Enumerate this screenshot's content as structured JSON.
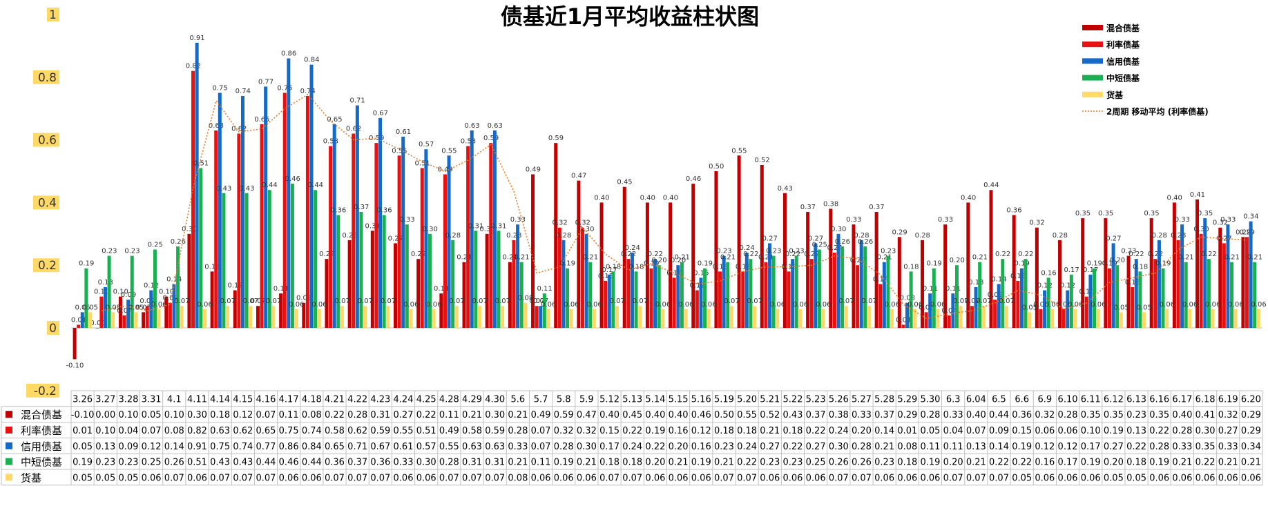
{
  "chart_data": {
    "type": "bar",
    "title": "债基近1月平均收益柱状图",
    "categories": [
      "3.26",
      "3.27",
      "3.28",
      "3.31",
      "4.1",
      "4.11",
      "4.14",
      "4.15",
      "4.16",
      "4.17",
      "4.18",
      "4.21",
      "4.22",
      "4.23",
      "4.24",
      "4.25",
      "4.28",
      "4.29",
      "4.30",
      "5.6",
      "5.7",
      "5.8",
      "5.9",
      "5.12",
      "5.13",
      "5.14",
      "5.15",
      "5.16",
      "5.19",
      "5.20",
      "5.21",
      "5.22",
      "5.23",
      "5.26",
      "5.27",
      "5.28",
      "5.29",
      "5.30",
      "6.3",
      "6.04",
      "6.5",
      "6.6",
      "6.9",
      "6.10",
      "6.11",
      "6.12",
      "6.13",
      "6.16",
      "6.17",
      "6.18",
      "6.19",
      "6.20"
    ],
    "ylim": [
      -0.2,
      1.0
    ],
    "yticks": [
      -0.2,
      0,
      0.2,
      0.4,
      0.6,
      0.8,
      1.0
    ],
    "ytick_labels": [
      "-0.2",
      "0",
      "0.2",
      "0.4",
      "0.6",
      "0.8",
      "1"
    ],
    "grid": false,
    "legend_position": "top-right",
    "series": [
      {
        "name": "混合债基",
        "color": "#C00000",
        "values": [
          -0.1,
          0.0,
          0.1,
          0.05,
          0.1,
          0.3,
          0.18,
          0.12,
          0.07,
          0.11,
          0.08,
          0.22,
          0.28,
          0.31,
          0.27,
          0.22,
          0.11,
          0.21,
          0.3,
          0.21,
          0.49,
          0.59,
          0.47,
          0.4,
          0.45,
          0.4,
          0.4,
          0.46,
          0.5,
          0.55,
          0.52,
          0.43,
          0.37,
          0.38,
          0.33,
          0.37,
          0.29,
          0.28,
          0.33,
          0.4,
          0.44,
          0.36,
          0.32,
          0.28,
          0.35,
          0.35,
          0.23,
          0.35,
          0.4,
          0.41,
          0.32,
          0.29
        ]
      },
      {
        "name": "利率债基",
        "color": "#E81010",
        "values": [
          0.01,
          0.1,
          0.04,
          0.07,
          0.08,
          0.82,
          0.63,
          0.62,
          0.65,
          0.75,
          0.74,
          0.58,
          0.62,
          0.59,
          0.55,
          0.51,
          0.49,
          0.58,
          0.59,
          0.28,
          0.07,
          0.32,
          0.32,
          0.15,
          0.22,
          0.19,
          0.16,
          0.12,
          0.18,
          0.18,
          0.21,
          0.18,
          0.22,
          0.24,
          0.2,
          0.14,
          0.01,
          0.05,
          0.04,
          0.07,
          0.09,
          0.15,
          0.06,
          0.06,
          0.1,
          0.19,
          0.13,
          0.22,
          0.28,
          0.3,
          0.27,
          0.29
        ]
      },
      {
        "name": "信用债基",
        "color": "#1569C7",
        "values": [
          0.05,
          0.13,
          0.09,
          0.12,
          0.14,
          0.91,
          0.75,
          0.74,
          0.77,
          0.86,
          0.84,
          0.65,
          0.71,
          0.67,
          0.61,
          0.57,
          0.55,
          0.63,
          0.63,
          0.33,
          0.07,
          0.28,
          0.3,
          0.17,
          0.24,
          0.22,
          0.2,
          0.16,
          0.23,
          0.24,
          0.27,
          0.22,
          0.27,
          0.3,
          0.28,
          0.21,
          0.08,
          0.11,
          0.11,
          0.13,
          0.14,
          0.19,
          0.12,
          0.12,
          0.17,
          0.27,
          0.22,
          0.28,
          0.33,
          0.35,
          0.33,
          0.34
        ]
      },
      {
        "name": "中短债基",
        "color": "#18B050",
        "values": [
          0.19,
          0.23,
          0.23,
          0.25,
          0.26,
          0.51,
          0.43,
          0.43,
          0.44,
          0.46,
          0.44,
          0.36,
          0.37,
          0.36,
          0.33,
          0.3,
          0.28,
          0.31,
          0.31,
          0.21,
          0.11,
          0.19,
          0.21,
          0.18,
          0.18,
          0.2,
          0.21,
          0.19,
          0.21,
          0.22,
          0.23,
          0.23,
          0.25,
          0.26,
          0.26,
          0.23,
          0.18,
          0.19,
          0.2,
          0.21,
          0.22,
          0.22,
          0.16,
          0.17,
          0.19,
          0.2,
          0.18,
          0.19,
          0.21,
          0.22,
          0.21,
          0.21
        ]
      },
      {
        "name": "货基",
        "color": "#FFD966",
        "values": [
          0.05,
          0.05,
          0.05,
          0.06,
          0.07,
          0.06,
          0.07,
          0.07,
          0.07,
          0.06,
          0.06,
          0.07,
          0.07,
          0.07,
          0.06,
          0.06,
          0.07,
          0.07,
          0.07,
          0.08,
          0.06,
          0.06,
          0.06,
          0.07,
          0.07,
          0.06,
          0.06,
          0.06,
          0.07,
          0.07,
          0.06,
          0.06,
          0.06,
          0.07,
          0.07,
          0.06,
          0.06,
          0.06,
          0.07,
          0.07,
          0.07,
          0.05,
          0.06,
          0.06,
          0.06,
          0.05,
          0.05,
          0.06,
          0.06,
          0.06,
          0.06,
          0.06
        ]
      }
    ],
    "moving_average": {
      "name": "2周期 移动平均 (利率债基)",
      "color": "#F07820",
      "period": 2,
      "source_series": "利率债基"
    }
  }
}
